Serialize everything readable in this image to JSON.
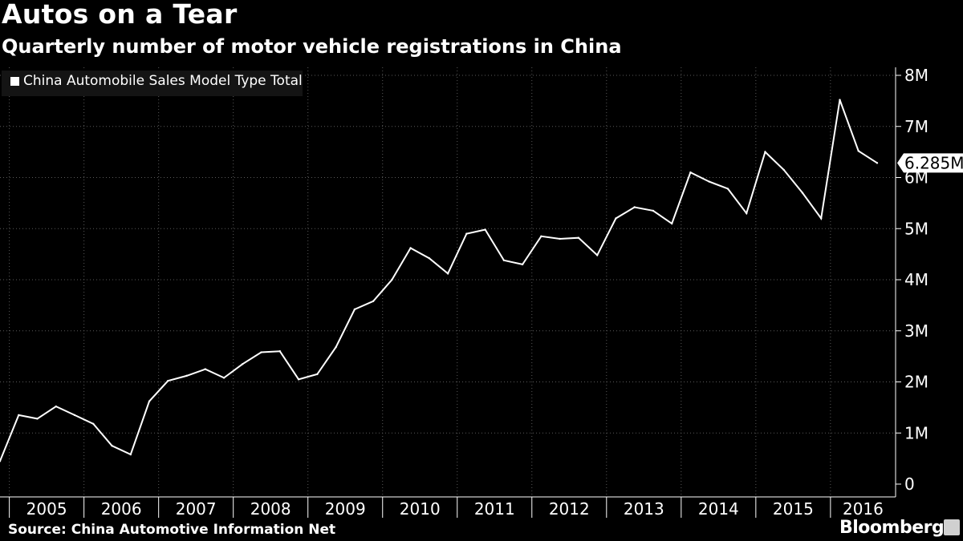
{
  "title": "Autos on a Tear",
  "subtitle": "Quarterly number of motor vehicle registrations in China",
  "legend": {
    "label": "China Automobile Sales Model Type Total"
  },
  "source": "Source: China Automotive Information Net",
  "brand": "Bloomberg",
  "colors": {
    "background": "#000000",
    "line": "#ffffff",
    "grid": "#555555"
  },
  "chart_data": {
    "type": "line",
    "title": "Autos on a Tear",
    "subtitle": "Quarterly number of motor vehicle registrations in China",
    "series": [
      {
        "name": "China Automobile Sales Model Type Total",
        "unit": "M",
        "values": [
          0.45,
          1.35,
          1.28,
          1.52,
          1.35,
          1.18,
          0.75,
          0.58,
          1.62,
          2.02,
          2.12,
          2.25,
          2.08,
          2.35,
          2.58,
          2.6,
          2.05,
          2.15,
          2.68,
          3.42,
          3.58,
          4.0,
          4.62,
          4.42,
          4.12,
          4.9,
          4.98,
          4.38,
          4.3,
          4.85,
          4.8,
          4.82,
          4.48,
          5.2,
          5.42,
          5.35,
          5.1,
          6.1,
          5.92,
          5.78,
          5.3,
          6.5,
          6.15,
          5.7,
          5.2,
          7.52,
          6.52,
          6.285
        ]
      }
    ],
    "x_start": "2004 Q4",
    "x_ticks": [
      "2005",
      "2006",
      "2007",
      "2008",
      "2009",
      "2010",
      "2011",
      "2012",
      "2013",
      "2014",
      "2015",
      "2016"
    ],
    "y_ticks": [
      "0",
      "1M",
      "2M",
      "3M",
      "4M",
      "5M",
      "6M",
      "7M",
      "8M"
    ],
    "ylim": [
      0,
      8
    ],
    "last_value_label": "6.285M",
    "xlabel": "",
    "ylabel": ""
  }
}
